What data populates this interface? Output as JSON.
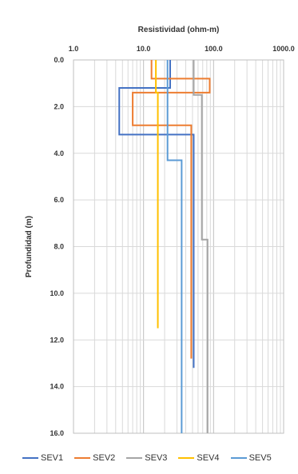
{
  "chart_data": {
    "type": "line",
    "title": "",
    "xlabel": "Resistividad (ohm-m)",
    "ylabel": "Profundidad (m)",
    "x_axis": {
      "scale": "log",
      "range": [
        1,
        1000
      ],
      "position": "top",
      "tick_labels": [
        "1.0",
        "10.0",
        "100.0",
        "1000.0"
      ]
    },
    "y_axis": {
      "range": [
        0,
        16
      ],
      "inverted": true,
      "tick_labels": [
        "0.0",
        "2.0",
        "4.0",
        "6.0",
        "8.0",
        "10.0",
        "12.0",
        "14.0",
        "16.0"
      ]
    },
    "grid": true,
    "legend_position": "bottom",
    "series": [
      {
        "name": "SEV1",
        "color": "#4472C4",
        "points": [
          [
            24,
            0.0
          ],
          [
            24,
            1.2
          ],
          [
            4.5,
            1.2
          ],
          [
            4.5,
            3.2
          ],
          [
            52,
            3.2
          ],
          [
            52,
            13.2
          ]
        ]
      },
      {
        "name": "SEV2",
        "color": "#ED7D31",
        "points": [
          [
            13,
            0.0
          ],
          [
            13,
            0.8
          ],
          [
            88,
            0.8
          ],
          [
            88,
            1.4
          ],
          [
            7,
            1.4
          ],
          [
            7,
            2.8
          ],
          [
            48,
            2.8
          ],
          [
            48,
            12.8
          ]
        ]
      },
      {
        "name": "SEV3",
        "color": "#A5A5A5",
        "points": [
          [
            52,
            0.0
          ],
          [
            52,
            1.5
          ],
          [
            68,
            1.5
          ],
          [
            68,
            7.7
          ],
          [
            82,
            7.7
          ],
          [
            82,
            16.0
          ]
        ]
      },
      {
        "name": "SEV4",
        "color": "#FFC000",
        "points": [
          [
            15,
            0.0
          ],
          [
            15,
            1.4
          ],
          [
            16,
            1.4
          ],
          [
            16,
            11.5
          ]
        ]
      },
      {
        "name": "SEV5",
        "color": "#5B9BD5",
        "points": [
          [
            22,
            0.0
          ],
          [
            22,
            4.3
          ],
          [
            35,
            4.3
          ],
          [
            35,
            16.0
          ]
        ]
      }
    ]
  }
}
